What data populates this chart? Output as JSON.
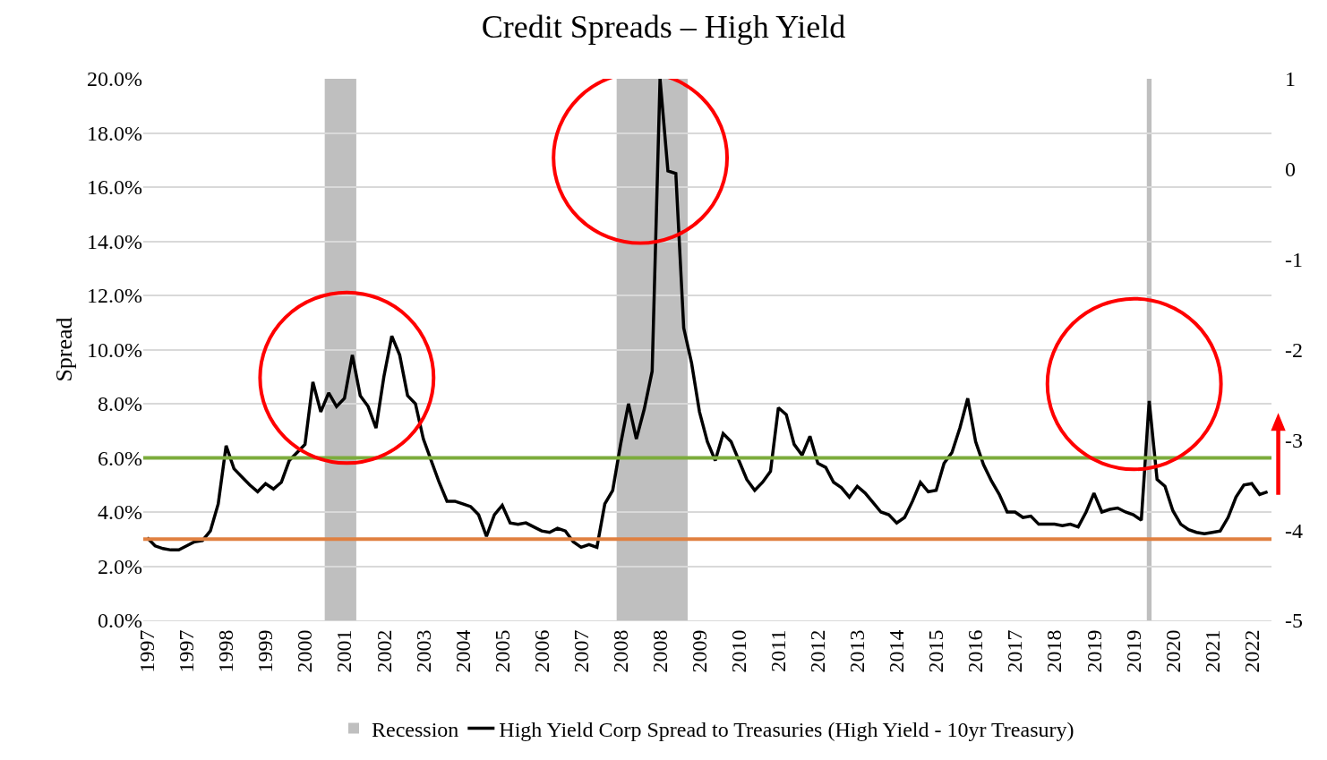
{
  "chart_data": {
    "type": "line",
    "title": "Credit Spreads – High Yield",
    "ylabel": "Spread",
    "categories": [
      "1997",
      null,
      null,
      null,
      null,
      "1997",
      null,
      null,
      null,
      null,
      "1998",
      null,
      null,
      null,
      null,
      "1999",
      null,
      null,
      null,
      null,
      "2000",
      null,
      null,
      null,
      null,
      "2001",
      null,
      null,
      null,
      null,
      "2002",
      null,
      null,
      null,
      null,
      "2003",
      null,
      null,
      null,
      null,
      "2004",
      null,
      null,
      null,
      null,
      "2005",
      null,
      null,
      null,
      null,
      "2006",
      null,
      null,
      null,
      null,
      "2007",
      null,
      null,
      null,
      null,
      "2008",
      null,
      null,
      null,
      null,
      "2008",
      null,
      null,
      null,
      null,
      "2009",
      null,
      null,
      null,
      null,
      "2010",
      null,
      null,
      null,
      null,
      "2011",
      null,
      null,
      null,
      null,
      "2012",
      null,
      null,
      null,
      null,
      "2013",
      null,
      null,
      null,
      null,
      "2014",
      null,
      null,
      null,
      null,
      "2015",
      null,
      null,
      null,
      null,
      "2016",
      null,
      null,
      null,
      null,
      "2017",
      null,
      null,
      null,
      null,
      "2018",
      null,
      null,
      null,
      null,
      "2019",
      null,
      null,
      null,
      null,
      "2019",
      null,
      null,
      null,
      null,
      "2020",
      null,
      null,
      null,
      null,
      "2021",
      null,
      null,
      null,
      null,
      "2022",
      null,
      null
    ],
    "series": [
      {
        "name": "Recession",
        "type": "bar",
        "axis": "y2",
        "color": "#bfbfbf",
        "values": [
          null,
          null,
          null,
          null,
          null,
          null,
          null,
          null,
          null,
          null,
          null,
          null,
          null,
          null,
          null,
          null,
          null,
          null,
          null,
          null,
          null,
          null,
          null,
          null,
          null,
          null,
          null,
          null,
          null,
          null,
          null,
          null,
          null,
          null,
          null,
          null,
          null,
          null,
          null,
          null,
          null,
          null,
          null,
          null,
          null,
          null,
          null,
          null,
          null,
          null,
          null,
          null,
          null,
          null,
          null,
          null,
          null,
          null,
          null,
          null,
          null,
          null,
          null,
          null,
          null,
          null,
          null,
          null,
          null,
          null,
          null,
          null,
          null,
          null,
          null,
          null,
          null,
          null,
          null,
          null,
          null,
          null,
          null,
          null,
          null,
          null,
          null,
          null,
          null,
          null,
          null,
          null,
          null,
          null,
          null,
          null,
          null,
          null,
          null,
          null,
          null,
          null,
          null,
          null,
          null,
          null,
          null,
          null,
          null,
          null,
          null,
          null,
          null,
          null,
          null,
          null,
          null,
          null,
          null,
          null,
          null,
          null,
          null,
          null,
          null,
          null,
          null,
          null,
          null,
          null,
          null,
          null,
          null,
          null,
          null,
          null,
          null,
          null,
          null,
          null,
          null,
          null,
          null
        ]
      },
      {
        "name": "High Yield Corp Spread to Treasuries (High Yield - 10yr Treasury)",
        "color": "#000000",
        "values": [
          3.05,
          2.75,
          2.65,
          2.6,
          2.6,
          2.75,
          2.9,
          2.95,
          3.3,
          4.3,
          6.45,
          5.6,
          5.3,
          5.0,
          4.75,
          5.05,
          4.85,
          5.1,
          5.9,
          6.2,
          6.5,
          8.8,
          7.7,
          8.4,
          7.9,
          8.2,
          9.8,
          8.3,
          7.9,
          7.1,
          9.0,
          10.5,
          9.8,
          8.3,
          8.0,
          6.7,
          5.9,
          5.1,
          4.4,
          4.4,
          4.3,
          4.2,
          3.9,
          3.1,
          3.9,
          4.25,
          3.6,
          3.55,
          3.6,
          3.45,
          3.3,
          3.25,
          3.4,
          3.3,
          2.9,
          2.7,
          2.8,
          2.7,
          4.3,
          4.8,
          6.5,
          8.0,
          6.7,
          7.8,
          9.2,
          20.0,
          16.6,
          16.5,
          10.8,
          9.5,
          7.7,
          6.6,
          5.9,
          6.9,
          6.6,
          5.9,
          5.2,
          4.8,
          5.1,
          5.5,
          7.85,
          7.6,
          6.5,
          6.1,
          6.8,
          5.8,
          5.65,
          5.1,
          4.9,
          4.55,
          4.95,
          4.7,
          4.35,
          4.0,
          3.9,
          3.6,
          3.8,
          4.4,
          5.1,
          4.75,
          4.8,
          5.8,
          6.2,
          7.1,
          8.2,
          6.6,
          5.75,
          5.15,
          4.65,
          4.0,
          4.0,
          3.8,
          3.85,
          3.55,
          3.55,
          3.55,
          3.5,
          3.55,
          3.45,
          4.0,
          4.7,
          4.0,
          4.1,
          4.15,
          4.0,
          3.9,
          3.7,
          8.1,
          5.2,
          4.95,
          4.05,
          3.55,
          3.35,
          3.25,
          3.2,
          3.25,
          3.3,
          3.8,
          4.55,
          5.0,
          5.05,
          4.65,
          4.75
        ]
      }
    ],
    "ylim": [
      0,
      20
    ],
    "yticks": [
      {
        "value": 0,
        "label": "0.0%"
      },
      {
        "value": 2,
        "label": "2.0%"
      },
      {
        "value": 4,
        "label": "4.0%"
      },
      {
        "value": 6,
        "label": "6.0%"
      },
      {
        "value": 8,
        "label": "8.0%"
      },
      {
        "value": 10,
        "label": "10.0%"
      },
      {
        "value": 12,
        "label": "12.0%"
      },
      {
        "value": 14,
        "label": "14.0%"
      },
      {
        "value": 16,
        "label": "16.0%"
      },
      {
        "value": 18,
        "label": "18.0%"
      },
      {
        "value": 20,
        "label": "20.0%"
      }
    ],
    "y2lim": [
      -5,
      1
    ],
    "y2ticks": [
      -5,
      -4,
      -3,
      -2,
      -1,
      0,
      1
    ],
    "ref_lines": [
      {
        "axis": "y",
        "value": 6,
        "color": "#7cac3c"
      },
      {
        "axis": "y",
        "value": 3,
        "color": "#e08040"
      }
    ],
    "grid": "y",
    "legend": "bottom"
  }
}
